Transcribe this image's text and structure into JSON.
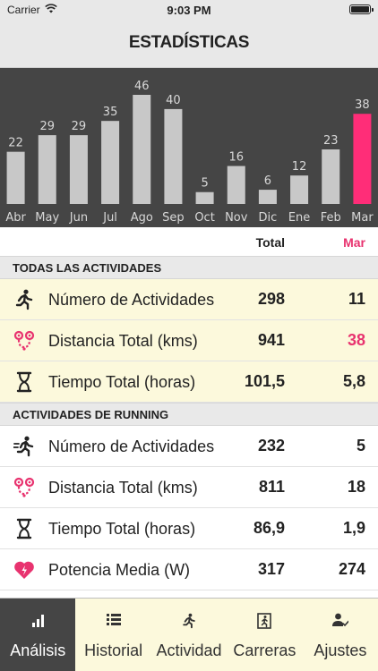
{
  "status_bar": {
    "carrier": "Carrier",
    "time": "9:03 PM"
  },
  "nav": {
    "title": "ESTADÍSTICAS"
  },
  "chart_data": {
    "type": "bar",
    "categories": [
      "Abr",
      "May",
      "Jun",
      "Jul",
      "Ago",
      "Sep",
      "Oct",
      "Nov",
      "Dic",
      "Ene",
      "Feb",
      "Mar"
    ],
    "values": [
      22,
      29,
      29,
      35,
      46,
      40,
      5,
      16,
      6,
      12,
      23,
      38
    ],
    "highlight_index": 11,
    "ylim": [
      0,
      46
    ],
    "bar_color": "#c8c8c8",
    "highlight_color": "#ff2d78",
    "background": "#454545",
    "label_color": "#d8d8d8"
  },
  "table": {
    "col_total": "Total",
    "col_month": "Mar"
  },
  "sections": [
    {
      "title": "TODAS LAS ACTIVIDADES",
      "rows": [
        {
          "icon": "runner-icon",
          "label": "Número de Actividades",
          "total": "298",
          "month": "11"
        },
        {
          "icon": "route-icon",
          "label": "Distancia Total (kms)",
          "total": "941",
          "month": "38"
        },
        {
          "icon": "hourglass-icon",
          "label": "Tiempo Total (horas)",
          "total": "101,5",
          "month": "5,8"
        }
      ]
    },
    {
      "title": "ACTIVIDADES DE RUNNING",
      "rows": [
        {
          "icon": "runner-fast-icon",
          "label": "Número de Actividades",
          "total": "232",
          "month": "5"
        },
        {
          "icon": "route-icon",
          "label": "Distancia Total (kms)",
          "total": "811",
          "month": "18"
        },
        {
          "icon": "hourglass-icon",
          "label": "Tiempo Total (horas)",
          "total": "86,9",
          "month": "1,9"
        },
        {
          "icon": "heart-bolt-icon",
          "label": "Potencia Media (W)",
          "total": "317",
          "month": "274"
        }
      ]
    }
  ],
  "tabs": [
    {
      "label": "Análisis",
      "icon": "bar-chart-icon",
      "active": true
    },
    {
      "label": "Historial",
      "icon": "list-icon",
      "active": false
    },
    {
      "label": "Actividad",
      "icon": "runner-icon",
      "active": false
    },
    {
      "label": "Carreras",
      "icon": "race-exit-icon",
      "active": false
    },
    {
      "label": "Ajustes",
      "icon": "user-settings-icon",
      "active": false
    }
  ],
  "colors": {
    "accent": "#e8336f",
    "highlight_row": "#fcf9dc",
    "dark": "#454545"
  }
}
